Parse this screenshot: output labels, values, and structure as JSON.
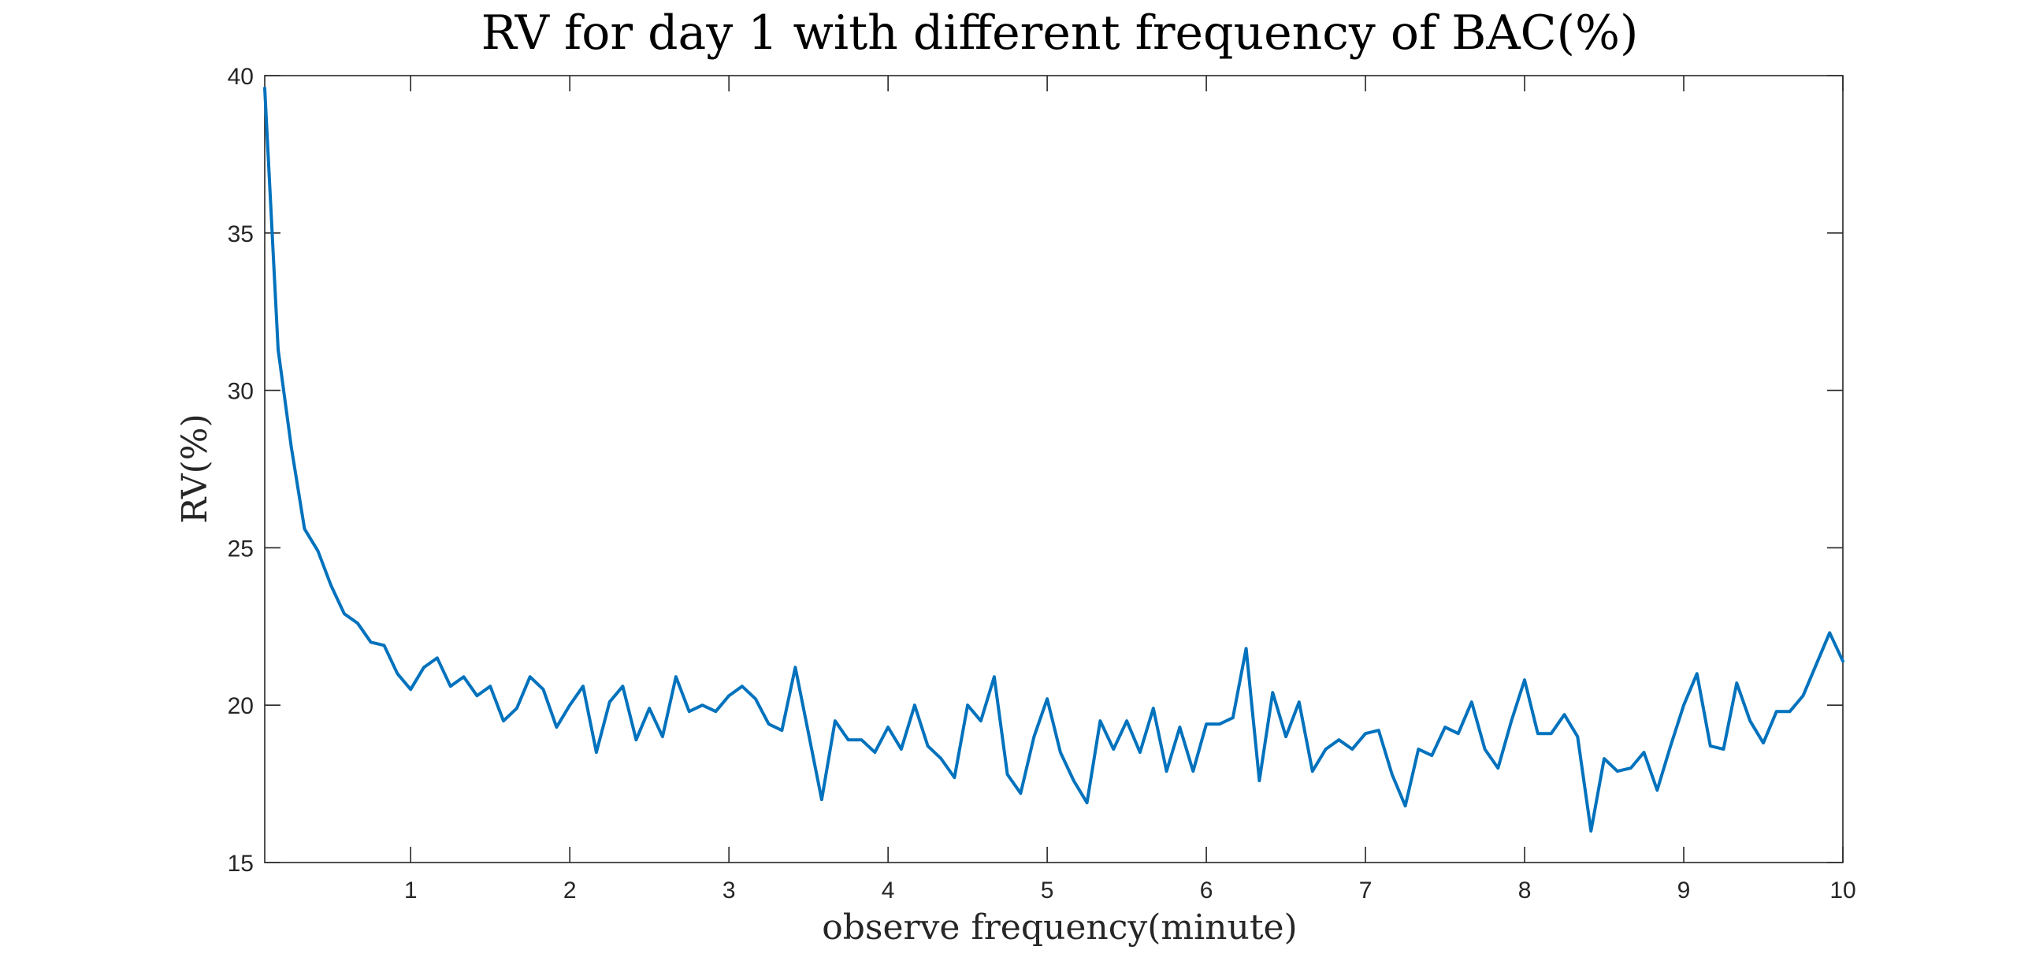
{
  "chart_data": {
    "type": "line",
    "title": "RV for day 1 with different frequency of BAC(%)",
    "xlabel": "observe frequency(minute)",
    "ylabel": "RV(%)",
    "xlim": [
      0.083,
      10
    ],
    "ylim": [
      15,
      40
    ],
    "xticks": [
      1,
      2,
      3,
      4,
      5,
      6,
      7,
      8,
      9,
      10
    ],
    "xtick_labels": [
      "1",
      "2",
      "3",
      "4",
      "5",
      "6",
      "7",
      "8",
      "9",
      "10"
    ],
    "yticks": [
      15,
      20,
      25,
      30,
      35,
      40
    ],
    "ytick_labels": [
      "15",
      "20",
      "25",
      "30",
      "35",
      "40"
    ],
    "grid": false,
    "colors": {
      "line": "#0072BD",
      "axes": "#262626"
    },
    "series": [
      {
        "x": [
          0.083,
          0.167,
          0.25,
          0.333,
          0.417,
          0.5,
          0.583,
          0.667,
          0.75,
          0.833,
          0.917,
          1.0,
          1.083,
          1.167,
          1.25,
          1.333,
          1.417,
          1.5,
          1.583,
          1.667,
          1.75,
          1.833,
          1.917,
          2.0,
          2.083,
          2.167,
          2.25,
          2.333,
          2.417,
          2.5,
          2.583,
          2.667,
          2.75,
          2.833,
          2.917,
          3.0,
          3.083,
          3.167,
          3.25,
          3.333,
          3.417,
          3.5,
          3.583,
          3.667,
          3.75,
          3.833,
          3.917,
          4.0,
          4.083,
          4.167,
          4.25,
          4.333,
          4.417,
          4.5,
          4.583,
          4.667,
          4.75,
          4.833,
          4.917,
          5.0,
          5.083,
          5.167,
          5.25,
          5.333,
          5.417,
          5.5,
          5.583,
          5.667,
          5.75,
          5.833,
          5.917,
          6.0,
          6.083,
          6.167,
          6.25,
          6.333,
          6.417,
          6.5,
          6.583,
          6.667,
          6.75,
          6.833,
          6.917,
          7.0,
          7.083,
          7.167,
          7.25,
          7.333,
          7.417,
          7.5,
          7.583,
          7.667,
          7.75,
          7.833,
          7.917,
          8.0,
          8.083,
          8.167,
          8.25,
          8.333,
          8.417,
          8.5,
          8.583,
          8.667,
          8.75,
          8.833,
          8.917,
          9.0,
          9.083,
          9.167,
          9.25,
          9.333,
          9.417,
          9.5,
          9.583,
          9.667,
          9.75,
          9.833,
          9.917,
          10.0
        ],
        "y": [
          39.6,
          31.3,
          28.2,
          25.6,
          24.9,
          23.8,
          22.9,
          22.6,
          22.0,
          21.9,
          21.0,
          20.5,
          21.2,
          21.5,
          20.6,
          20.9,
          20.3,
          20.6,
          19.5,
          19.9,
          20.9,
          20.5,
          19.3,
          20.0,
          20.6,
          18.5,
          20.1,
          20.6,
          18.9,
          19.9,
          19.0,
          20.9,
          19.8,
          20.0,
          19.8,
          20.3,
          20.6,
          20.2,
          19.4,
          19.2,
          21.2,
          19.1,
          17.0,
          19.5,
          18.9,
          18.9,
          18.5,
          19.3,
          18.6,
          20.0,
          18.7,
          18.3,
          17.7,
          20.0,
          19.5,
          20.9,
          17.8,
          17.2,
          19.0,
          20.2,
          18.5,
          17.6,
          16.9,
          19.5,
          18.6,
          19.5,
          18.5,
          19.9,
          17.9,
          19.3,
          17.9,
          19.4,
          19.4,
          19.6,
          21.8,
          17.6,
          20.4,
          19.0,
          20.1,
          17.9,
          18.6,
          18.9,
          18.6,
          19.1,
          19.2,
          17.8,
          16.8,
          18.6,
          18.4,
          19.3,
          19.1,
          20.1,
          18.6,
          18.0,
          19.5,
          20.8,
          19.1,
          19.1,
          19.7,
          19.0,
          16.0,
          18.3,
          17.9,
          18.0,
          18.5,
          17.3,
          18.7,
          20.0,
          21.0,
          18.7,
          18.6,
          20.7,
          19.5,
          18.8,
          19.8,
          19.8,
          20.3,
          21.3,
          22.3,
          21.4
        ]
      }
    ]
  }
}
